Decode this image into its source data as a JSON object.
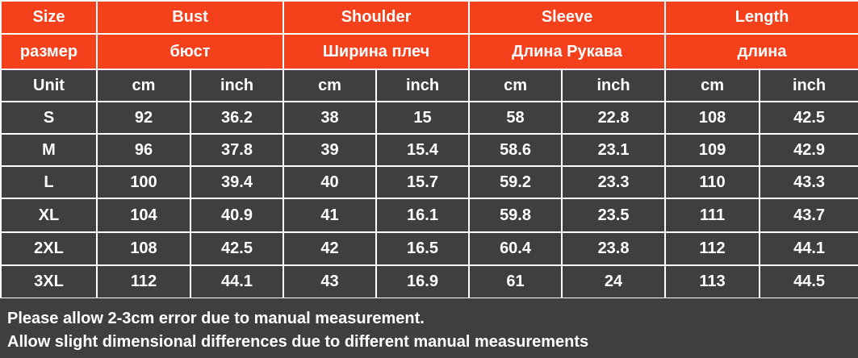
{
  "header": {
    "labels": [
      "Size",
      "Bust",
      "Shoulder",
      "Sleeve",
      "Length"
    ],
    "labels_ru": [
      "размер",
      "бюст",
      "Ширина плеч",
      "Длина Рукава",
      "длина"
    ]
  },
  "table": {
    "units": [
      "Unit",
      "cm",
      "inch",
      "cm",
      "inch",
      "cm",
      "inch",
      "cm",
      "inch"
    ],
    "rows": [
      [
        "S",
        "92",
        "36.2",
        "38",
        "15",
        "58",
        "22.8",
        "108",
        "42.5"
      ],
      [
        "M",
        "96",
        "37.8",
        "39",
        "15.4",
        "58.6",
        "23.1",
        "109",
        "42.9"
      ],
      [
        "L",
        "100",
        "39.4",
        "40",
        "15.7",
        "59.2",
        "23.3",
        "110",
        "43.3"
      ],
      [
        "XL",
        "104",
        "40.9",
        "41",
        "16.1",
        "59.8",
        "23.5",
        "111",
        "43.7"
      ],
      [
        "2XL",
        "108",
        "42.5",
        "42",
        "16.5",
        "60.4",
        "23.8",
        "112",
        "44.1"
      ],
      [
        "3XL",
        "112",
        "44.1",
        "43",
        "16.9",
        "61",
        "24",
        "113",
        "44.5"
      ]
    ]
  },
  "footer": {
    "lines": [
      "Please allow 2-3cm error due to manual measurement.",
      "Allow slight dimensional differences due to different manual measurements"
    ]
  }
}
